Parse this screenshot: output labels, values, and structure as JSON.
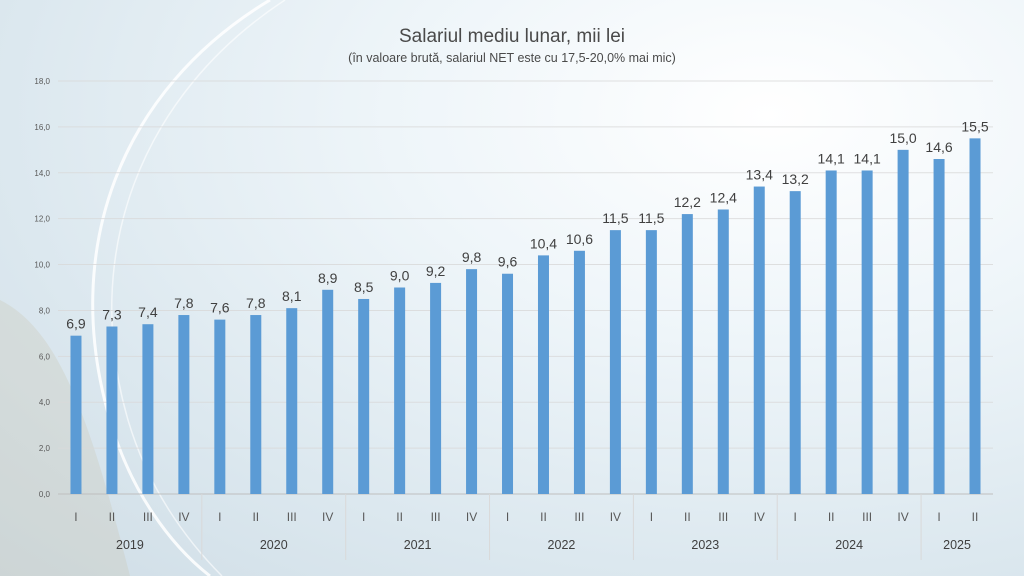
{
  "chart_data": {
    "type": "bar",
    "title": "Salariul mediu lunar, mii lei",
    "subtitle": "(în valoare brută, salariul NET este cu 17,5-20,0% mai mic)",
    "ylim": [
      0,
      18
    ],
    "yticks": [
      "0,0",
      "2,0",
      "4,0",
      "6,0",
      "8,0",
      "10,0",
      "12,0",
      "14,0",
      "16,0",
      "18,0"
    ],
    "grid": true,
    "bar_color": "#5b9bd5",
    "categories": [
      {
        "year": "2019",
        "quarter": "I"
      },
      {
        "year": "2019",
        "quarter": "II"
      },
      {
        "year": "2019",
        "quarter": "III"
      },
      {
        "year": "2019",
        "quarter": "IV"
      },
      {
        "year": "2020",
        "quarter": "I"
      },
      {
        "year": "2020",
        "quarter": "II"
      },
      {
        "year": "2020",
        "quarter": "III"
      },
      {
        "year": "2020",
        "quarter": "IV"
      },
      {
        "year": "2021",
        "quarter": "I"
      },
      {
        "year": "2021",
        "quarter": "II"
      },
      {
        "year": "2021",
        "quarter": "III"
      },
      {
        "year": "2021",
        "quarter": "IV"
      },
      {
        "year": "2022",
        "quarter": "I"
      },
      {
        "year": "2022",
        "quarter": "II"
      },
      {
        "year": "2022",
        "quarter": "III"
      },
      {
        "year": "2022",
        "quarter": "IV"
      },
      {
        "year": "2023",
        "quarter": "I"
      },
      {
        "year": "2023",
        "quarter": "II"
      },
      {
        "year": "2023",
        "quarter": "III"
      },
      {
        "year": "2023",
        "quarter": "IV"
      },
      {
        "year": "2024",
        "quarter": "I"
      },
      {
        "year": "2024",
        "quarter": "II"
      },
      {
        "year": "2024",
        "quarter": "III"
      },
      {
        "year": "2024",
        "quarter": "IV"
      },
      {
        "year": "2025",
        "quarter": "I"
      },
      {
        "year": "2025",
        "quarter": "II"
      }
    ],
    "years": [
      "2019",
      "2020",
      "2021",
      "2022",
      "2023",
      "2024",
      "2025"
    ],
    "values": [
      6.9,
      7.3,
      7.4,
      7.8,
      7.6,
      7.8,
      8.1,
      8.9,
      8.5,
      9.0,
      9.2,
      9.8,
      9.6,
      10.4,
      10.6,
      11.5,
      11.5,
      12.2,
      12.4,
      13.4,
      13.2,
      14.1,
      14.1,
      15.0,
      14.6,
      15.5
    ],
    "value_labels": [
      "6,9",
      "7,3",
      "7,4",
      "7,8",
      "7,6",
      "7,8",
      "8,1",
      "8,9",
      "8,5",
      "9,0",
      "9,2",
      "9,8",
      "9,6",
      "10,4",
      "10,6",
      "11,5",
      "11,5",
      "12,2",
      "12,4",
      "13,4",
      "13,2",
      "14,1",
      "14,1",
      "15,0",
      "14,6",
      "15,5"
    ]
  }
}
